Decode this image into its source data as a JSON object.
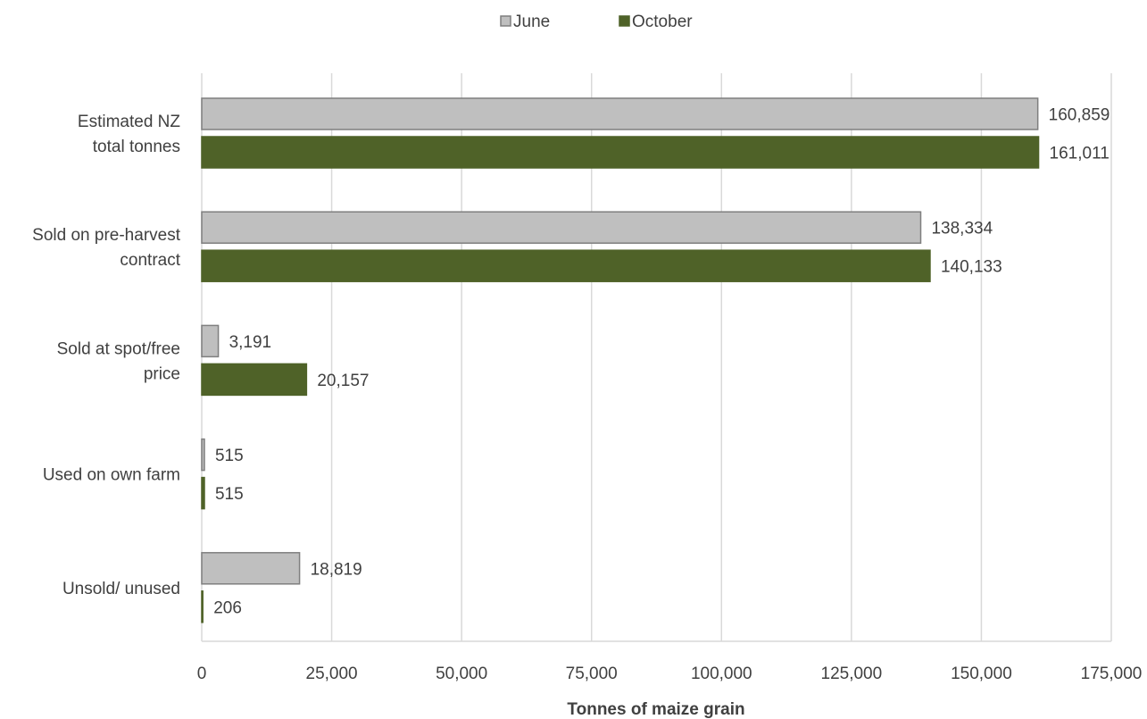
{
  "chart_data": {
    "type": "bar",
    "orientation": "horizontal",
    "categories": [
      [
        "Estimated NZ",
        "total tonnes"
      ],
      [
        "Sold on pre-harvest",
        "contract"
      ],
      [
        "Sold at spot/free",
        "price"
      ],
      [
        "Used on own farm"
      ],
      [
        "Unsold/ unused"
      ]
    ],
    "series": [
      {
        "name": "June",
        "color": "#bfbfbf",
        "border": "#7f7f7f",
        "values": [
          160859,
          138334,
          3191,
          515,
          18819
        ],
        "labels": [
          "160,859",
          "138,334",
          "3,191",
          "515",
          "18,819"
        ]
      },
      {
        "name": "October",
        "color": "#4f6228",
        "border": "#4f6228",
        "values": [
          161011,
          140133,
          20157,
          515,
          206
        ],
        "labels": [
          "161,011",
          "140,133",
          "20,157",
          "515",
          "206"
        ]
      }
    ],
    "xlabel": "Tonnes of maize grain",
    "xlim": [
      0,
      175000
    ],
    "xticks": [
      0,
      25000,
      50000,
      75000,
      100000,
      125000,
      150000,
      175000
    ],
    "xtick_labels": [
      "0",
      "25,000",
      "50,000",
      "75,000",
      "100,000",
      "125,000",
      "150,000",
      "175,000"
    ],
    "grid": "vertical",
    "legend_position": "top"
  }
}
